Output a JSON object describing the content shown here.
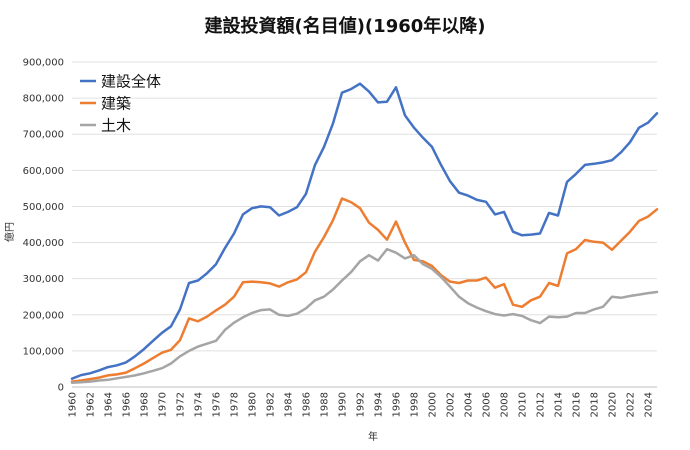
{
  "chart_data": {
    "type": "line",
    "title": "建設投資額(名目値)(1960年以降)",
    "xlabel": "年",
    "ylabel": "億円",
    "xlim": [
      1960,
      2025
    ],
    "ylim": [
      0,
      900000
    ],
    "yticks": [
      0,
      100000,
      200000,
      300000,
      400000,
      500000,
      600000,
      700000,
      800000,
      900000
    ],
    "ytick_labels": [
      "0",
      "100,000",
      "200,000",
      "300,000",
      "400,000",
      "500,000",
      "600,000",
      "700,000",
      "800,000",
      "900,000"
    ],
    "xticks": [
      1960,
      1962,
      1964,
      1966,
      1968,
      1970,
      1972,
      1974,
      1976,
      1978,
      1980,
      1982,
      1984,
      1986,
      1988,
      1990,
      1992,
      1994,
      1996,
      1998,
      2000,
      2002,
      2004,
      2006,
      2008,
      2010,
      2012,
      2014,
      2016,
      2018,
      2020,
      2022,
      2024
    ],
    "grid": true,
    "legend_position": "top-left",
    "x": [
      1960,
      1961,
      1962,
      1963,
      1964,
      1965,
      1966,
      1967,
      1968,
      1969,
      1970,
      1971,
      1972,
      1973,
      1974,
      1975,
      1976,
      1977,
      1978,
      1979,
      1980,
      1981,
      1982,
      1983,
      1984,
      1985,
      1986,
      1987,
      1988,
      1989,
      1990,
      1991,
      1992,
      1993,
      1994,
      1995,
      1996,
      1997,
      1998,
      1999,
      2000,
      2001,
      2002,
      2003,
      2004,
      2005,
      2006,
      2007,
      2008,
      2009,
      2010,
      2011,
      2012,
      2013,
      2014,
      2015,
      2016,
      2017,
      2018,
      2019,
      2020,
      2021,
      2022,
      2023,
      2024,
      2025
    ],
    "series": [
      {
        "name": "建設全体",
        "color": "#4472C4",
        "values": [
          23000,
          33000,
          38000,
          46000,
          55000,
          60000,
          68000,
          85000,
          105000,
          128000,
          150000,
          168000,
          215000,
          288000,
          295000,
          315000,
          340000,
          385000,
          425000,
          478000,
          495000,
          500000,
          498000,
          475000,
          485000,
          498000,
          535000,
          615000,
          665000,
          730000,
          815000,
          825000,
          840000,
          818000,
          788000,
          790000,
          830000,
          752000,
          718000,
          690000,
          665000,
          615000,
          570000,
          538000,
          530000,
          518000,
          513000,
          478000,
          485000,
          430000,
          420000,
          422000,
          425000,
          482000,
          475000,
          568000,
          590000,
          615000,
          618000,
          622000,
          628000,
          650000,
          678000,
          718000,
          732000,
          758000
        ]
      },
      {
        "name": "建築",
        "color": "#ED7D31",
        "values": [
          15000,
          18000,
          22000,
          26000,
          32000,
          35000,
          40000,
          52000,
          65000,
          80000,
          95000,
          103000,
          130000,
          190000,
          182000,
          195000,
          212000,
          228000,
          250000,
          290000,
          292000,
          290000,
          287000,
          278000,
          290000,
          298000,
          318000,
          375000,
          415000,
          462000,
          522000,
          512000,
          495000,
          455000,
          435000,
          408000,
          458000,
          400000,
          352000,
          348000,
          335000,
          310000,
          292000,
          288000,
          295000,
          295000,
          303000,
          275000,
          285000,
          228000,
          222000,
          240000,
          250000,
          288000,
          280000,
          370000,
          382000,
          407000,
          402000,
          400000,
          380000,
          405000,
          430000,
          460000,
          472000,
          492000
        ]
      },
      {
        "name": "土木",
        "color": "#A5A5A5",
        "values": [
          12000,
          13000,
          15000,
          18000,
          20000,
          24000,
          28000,
          32000,
          38000,
          45000,
          52000,
          65000,
          85000,
          100000,
          112000,
          120000,
          128000,
          158000,
          178000,
          193000,
          205000,
          213000,
          215000,
          200000,
          197000,
          203000,
          218000,
          240000,
          250000,
          270000,
          295000,
          318000,
          348000,
          365000,
          350000,
          382000,
          372000,
          356000,
          365000,
          340000,
          327000,
          305000,
          278000,
          250000,
          232000,
          220000,
          210000,
          202000,
          198000,
          202000,
          197000,
          185000,
          177000,
          195000,
          193000,
          195000,
          205000,
          205000,
          215000,
          222000,
          250000,
          247000,
          252000,
          256000,
          260000,
          263000
        ]
      }
    ]
  }
}
